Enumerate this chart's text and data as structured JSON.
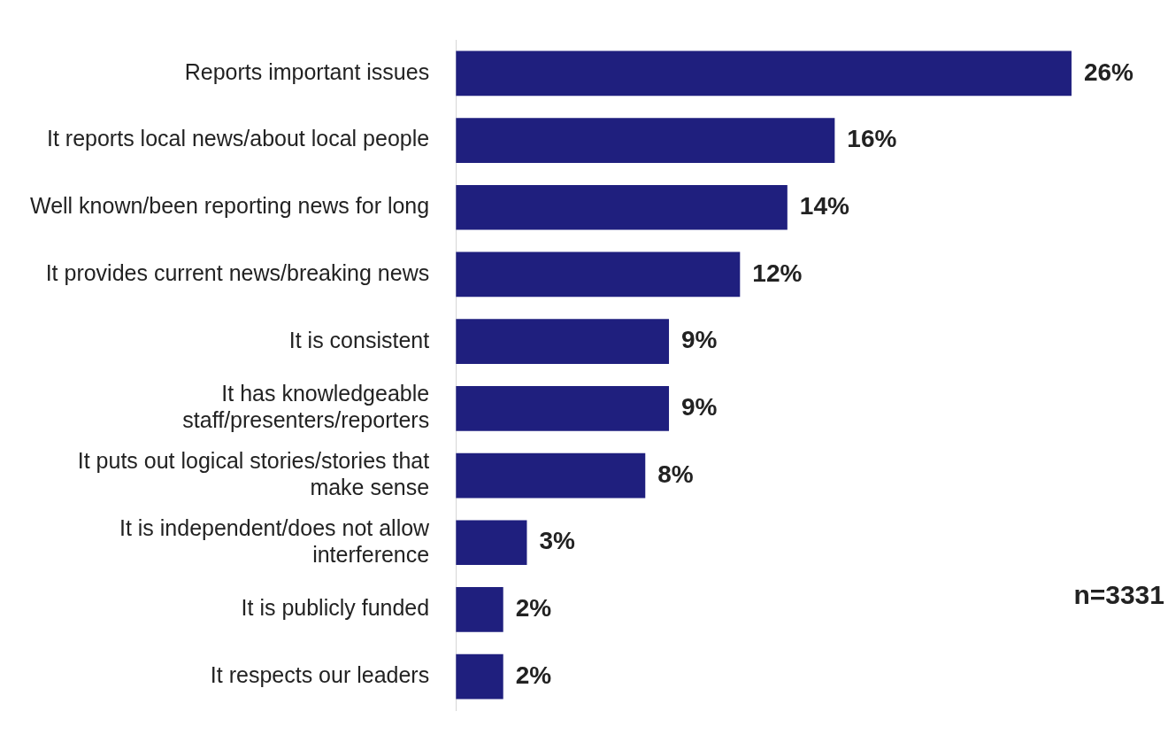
{
  "chart_data": {
    "type": "bar",
    "orientation": "horizontal",
    "categories": [
      "Reports important issues",
      "It reports local news/about local people",
      "Well known/been reporting news for long",
      "It provides current news/breaking news",
      "It is consistent",
      "It has knowledgeable staff/presenters/reporters",
      "It puts out logical stories/stories that make sense",
      "It is independent/does not allow interference",
      "It is publicly funded",
      "It respects our leaders"
    ],
    "values": [
      26,
      16,
      14,
      12,
      9,
      9,
      8,
      3,
      2,
      2
    ],
    "color": "#1f1f7e",
    "data_labels": true,
    "value_labels": [
      "26%",
      "16%",
      "14%",
      "12%",
      "9%",
      "9%",
      "8%",
      "3%",
      "2%",
      "2%"
    ],
    "legend": false,
    "annotations": [
      "n=3331"
    ]
  }
}
